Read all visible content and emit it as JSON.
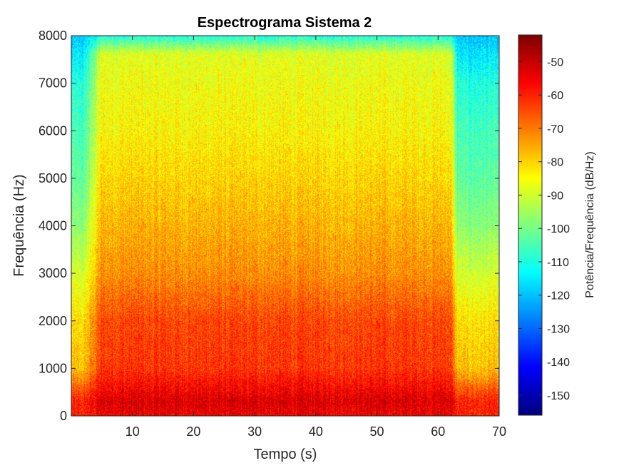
{
  "chart_data": {
    "type": "heatmap",
    "title": "Espectrograma Sistema 2",
    "xlabel": "Tempo (s)",
    "ylabel": "Frequência (Hz)",
    "xlim": [
      0,
      70
    ],
    "ylim": [
      0,
      8000
    ],
    "xticks": [
      10,
      20,
      30,
      40,
      50,
      60,
      70
    ],
    "yticks": [
      0,
      1000,
      2000,
      3000,
      4000,
      5000,
      6000,
      7000,
      8000
    ],
    "colormap": "jet",
    "colorbar": {
      "label": "Potência/Frequência (dB/Hz)",
      "range": [
        -156,
        -42
      ],
      "ticks": [
        -50,
        -60,
        -70,
        -80,
        -90,
        -100,
        -110,
        -120,
        -130,
        -140,
        -150
      ]
    },
    "signal_active_interval_s": [
      5,
      62
    ],
    "approx_power_db_by_frequency": {
      "active": [
        {
          "freq_hz": 0,
          "db": -55
        },
        {
          "freq_hz": 300,
          "db": -52
        },
        {
          "freq_hz": 1000,
          "db": -62
        },
        {
          "freq_hz": 2000,
          "db": -64
        },
        {
          "freq_hz": 3000,
          "db": -72
        },
        {
          "freq_hz": 4000,
          "db": -76
        },
        {
          "freq_hz": 5000,
          "db": -80
        },
        {
          "freq_hz": 6000,
          "db": -84
        },
        {
          "freq_hz": 7000,
          "db": -86
        },
        {
          "freq_hz": 7600,
          "db": -88
        },
        {
          "freq_hz": 8000,
          "db": -110
        }
      ],
      "silent": [
        {
          "freq_hz": 0,
          "db": -60
        },
        {
          "freq_hz": 300,
          "db": -60
        },
        {
          "freq_hz": 1000,
          "db": -78
        },
        {
          "freq_hz": 2000,
          "db": -82
        },
        {
          "freq_hz": 3000,
          "db": -90
        },
        {
          "freq_hz": 4000,
          "db": -98
        },
        {
          "freq_hz": 5000,
          "db": -103
        },
        {
          "freq_hz": 6000,
          "db": -106
        },
        {
          "freq_hz": 7000,
          "db": -110
        },
        {
          "freq_hz": 8000,
          "db": -120
        }
      ]
    },
    "grid": false,
    "legend": "none"
  }
}
